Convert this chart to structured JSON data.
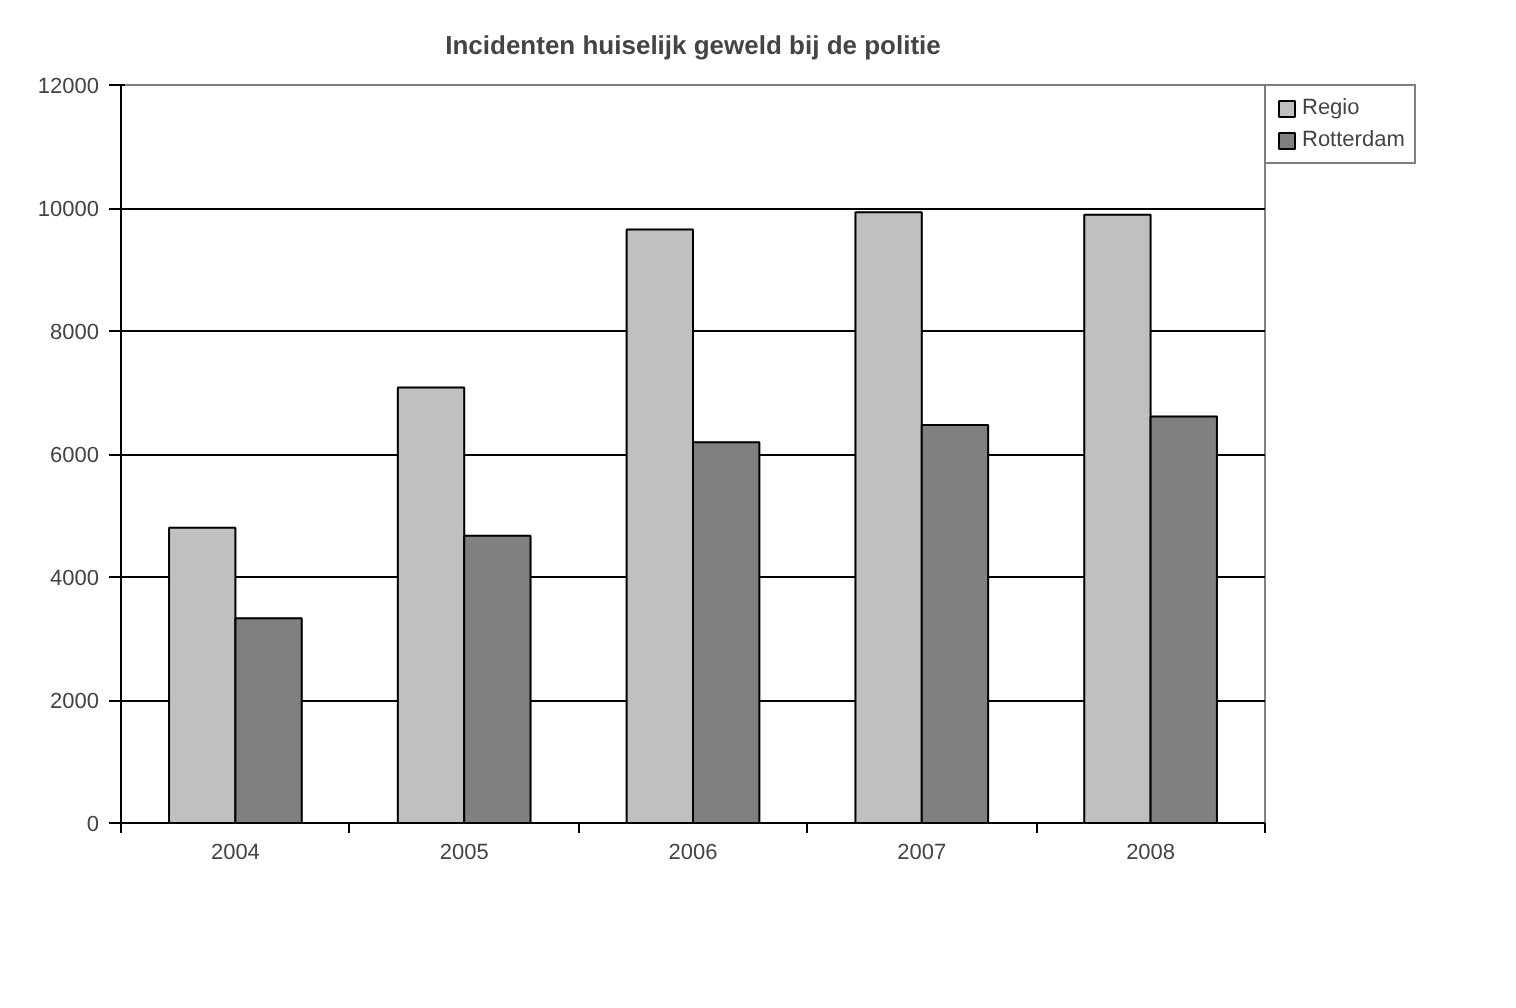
{
  "chart_data": {
    "type": "bar",
    "title": "Incidenten huiselijk geweld bij de politie",
    "categories": [
      "2004",
      "2005",
      "2006",
      "2007",
      "2008"
    ],
    "series": [
      {
        "name": "Regio",
        "color": "#c0c0c0",
        "values": [
          4800,
          7080,
          9650,
          9930,
          9890
        ]
      },
      {
        "name": "Rotterdam",
        "color": "#808080",
        "values": [
          3330,
          4670,
          6190,
          6470,
          6610
        ]
      }
    ],
    "ylim": [
      0,
      12000
    ],
    "yticks": [
      0,
      2000,
      4000,
      6000,
      8000,
      10000,
      12000
    ],
    "grid": "y",
    "legend": "right"
  }
}
